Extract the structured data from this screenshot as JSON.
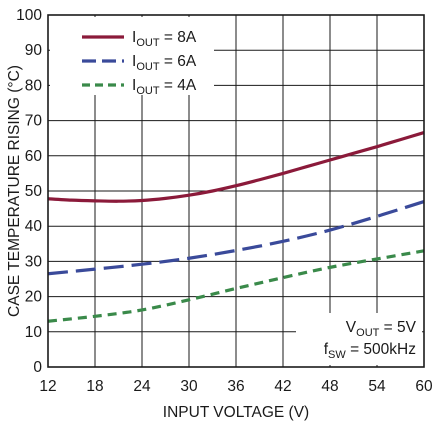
{
  "chart_data": {
    "type": "line",
    "title": "",
    "xlabel": "INPUT VOLTAGE (V)",
    "ylabel": "CASE TEMPERATURE RISING (°C)",
    "xlim": [
      12,
      60
    ],
    "ylim": [
      0,
      100
    ],
    "xticks": [
      12,
      18,
      24,
      30,
      36,
      42,
      48,
      54,
      60
    ],
    "yticks": [
      0,
      10,
      20,
      30,
      40,
      50,
      60,
      70,
      80,
      90,
      100
    ],
    "grid": true,
    "legend_position": "top-left",
    "series": [
      {
        "name": {
          "main": "I",
          "sub": "OUT",
          "rest": " = 8A"
        },
        "color": "#8b1a3a",
        "dash": "solid",
        "x": [
          12,
          15,
          18,
          21,
          24,
          27,
          30,
          33,
          36,
          39,
          42,
          45,
          48,
          51,
          54,
          57,
          60
        ],
        "y": [
          47.8,
          47.4,
          47.2,
          47.1,
          47.3,
          47.9,
          48.8,
          50.0,
          51.5,
          53.2,
          55.0,
          56.9,
          58.8,
          60.7,
          62.6,
          64.6,
          66.6
        ]
      },
      {
        "name": {
          "main": "I",
          "sub": "OUT",
          "rest": " = 6A"
        },
        "color": "#3a4a9a",
        "dash": "long",
        "x": [
          12,
          18,
          24,
          30,
          36,
          42,
          48,
          54,
          60
        ],
        "y": [
          26.5,
          27.8,
          29.2,
          30.9,
          33.1,
          35.7,
          38.9,
          42.8,
          47.0
        ]
      },
      {
        "name": {
          "main": "I",
          "sub": "OUT",
          "rest": " = 4A"
        },
        "color": "#3a8a4a",
        "dash": "short",
        "x": [
          12,
          18,
          24,
          30,
          36,
          42,
          48,
          54,
          60
        ],
        "y": [
          13.0,
          14.4,
          16.2,
          19.1,
          22.3,
          25.4,
          28.3,
          30.7,
          33.0
        ]
      }
    ],
    "annotations": [
      {
        "main": "V",
        "sub": "OUT",
        "rest": " = 5V"
      },
      {
        "main": "f",
        "sub": "SW",
        "rest": " = 500kHz"
      }
    ]
  }
}
